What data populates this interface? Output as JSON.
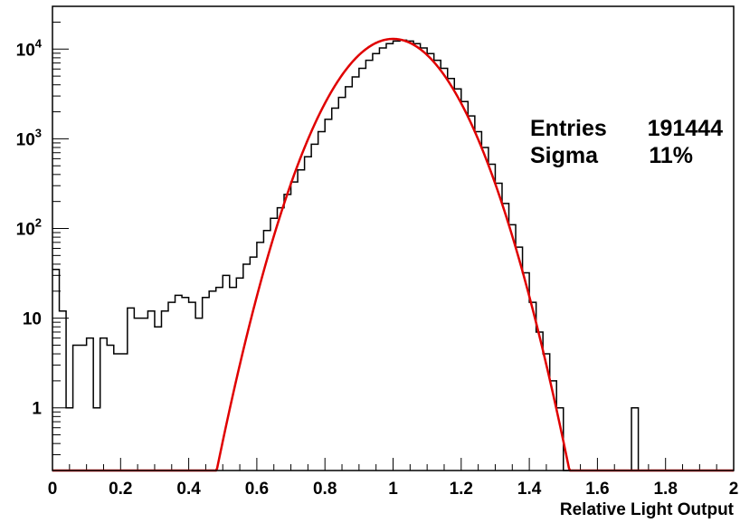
{
  "chart_data": {
    "type": "histogram",
    "xlabel": "Relative Light Output",
    "ylabel": "",
    "xlim": [
      0,
      2
    ],
    "ylim": [
      0.2,
      30000
    ],
    "yscale": "log",
    "grid": false,
    "x_ticks": [
      "0",
      "0.2",
      "0.4",
      "0.6",
      "0.8",
      "1",
      "1.2",
      "1.4",
      "1.6",
      "1.8",
      "2"
    ],
    "y_ticks": [
      {
        "value": 1,
        "label": "1",
        "sup": ""
      },
      {
        "value": 10,
        "label": "10",
        "sup": ""
      },
      {
        "value": 100,
        "label": "10",
        "sup": "2"
      },
      {
        "value": 1000,
        "label": "10",
        "sup": "3"
      },
      {
        "value": 10000,
        "label": "10",
        "sup": "4"
      }
    ],
    "stats": {
      "entries_label": "Entries",
      "entries_value": "191444",
      "sigma_label": "Sigma",
      "sigma_value": "11%"
    },
    "histogram": {
      "name": "",
      "color": "#000000",
      "bin_width": 0.02,
      "start": 0,
      "counts": [
        35,
        12,
        1,
        5,
        5,
        6,
        1,
        6,
        5,
        4,
        4,
        13,
        10,
        10,
        12,
        8,
        12,
        15,
        18,
        17,
        15,
        10,
        17,
        20,
        22,
        30,
        22,
        28,
        40,
        48,
        70,
        95,
        130,
        170,
        240,
        330,
        450,
        630,
        870,
        1200,
        1650,
        2200,
        2900,
        3800,
        4900,
        6100,
        7500,
        8900,
        10300,
        11500,
        12300,
        12600,
        12300,
        11500,
        10300,
        8900,
        7500,
        6100,
        4700,
        3600,
        2600,
        1800,
        1200,
        800,
        520,
        320,
        190,
        110,
        62,
        32,
        15,
        7,
        4,
        2,
        1,
        0,
        0,
        0,
        0,
        0,
        0,
        0,
        0,
        0,
        0,
        1,
        0,
        0,
        0,
        0,
        0,
        0,
        0,
        0,
        0,
        0,
        0,
        0,
        0,
        0
      ]
    },
    "fit": {
      "name": "",
      "type": "gaussian",
      "color": "#e00000",
      "amplitude": 13000,
      "mean": 1.0,
      "sigma": 0.11
    }
  }
}
